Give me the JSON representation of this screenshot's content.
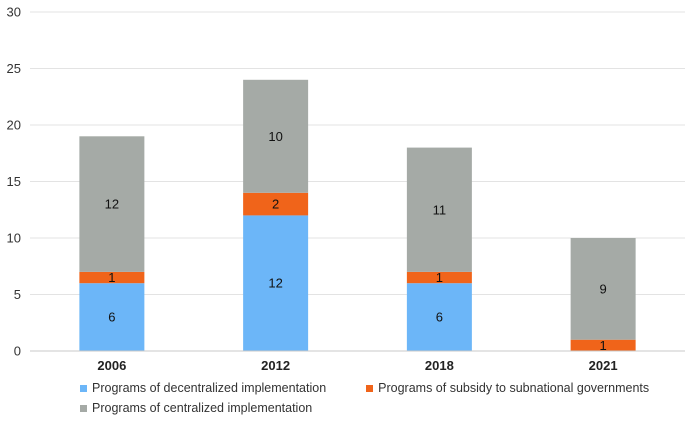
{
  "chart_data": {
    "type": "bar",
    "stacked": true,
    "title": "",
    "xlabel": "",
    "ylabel": "",
    "ylim": [
      0,
      30
    ],
    "yticks": [
      0,
      5,
      10,
      15,
      20,
      25,
      30
    ],
    "grid": true,
    "legend_position": "bottom",
    "categories": [
      "2006",
      "2012",
      "2018",
      "2021"
    ],
    "series": [
      {
        "name": "Programs of decentralized implementation",
        "color": "#6cb6f8",
        "values": [
          6,
          12,
          6,
          0
        ]
      },
      {
        "name": "Programs of subsidy to subnational governments",
        "color": "#f0641a",
        "values": [
          1,
          2,
          1,
          1
        ]
      },
      {
        "name": "Programs of centralized implementation",
        "color": "#a5aaa6",
        "values": [
          12,
          10,
          11,
          9
        ]
      }
    ]
  }
}
